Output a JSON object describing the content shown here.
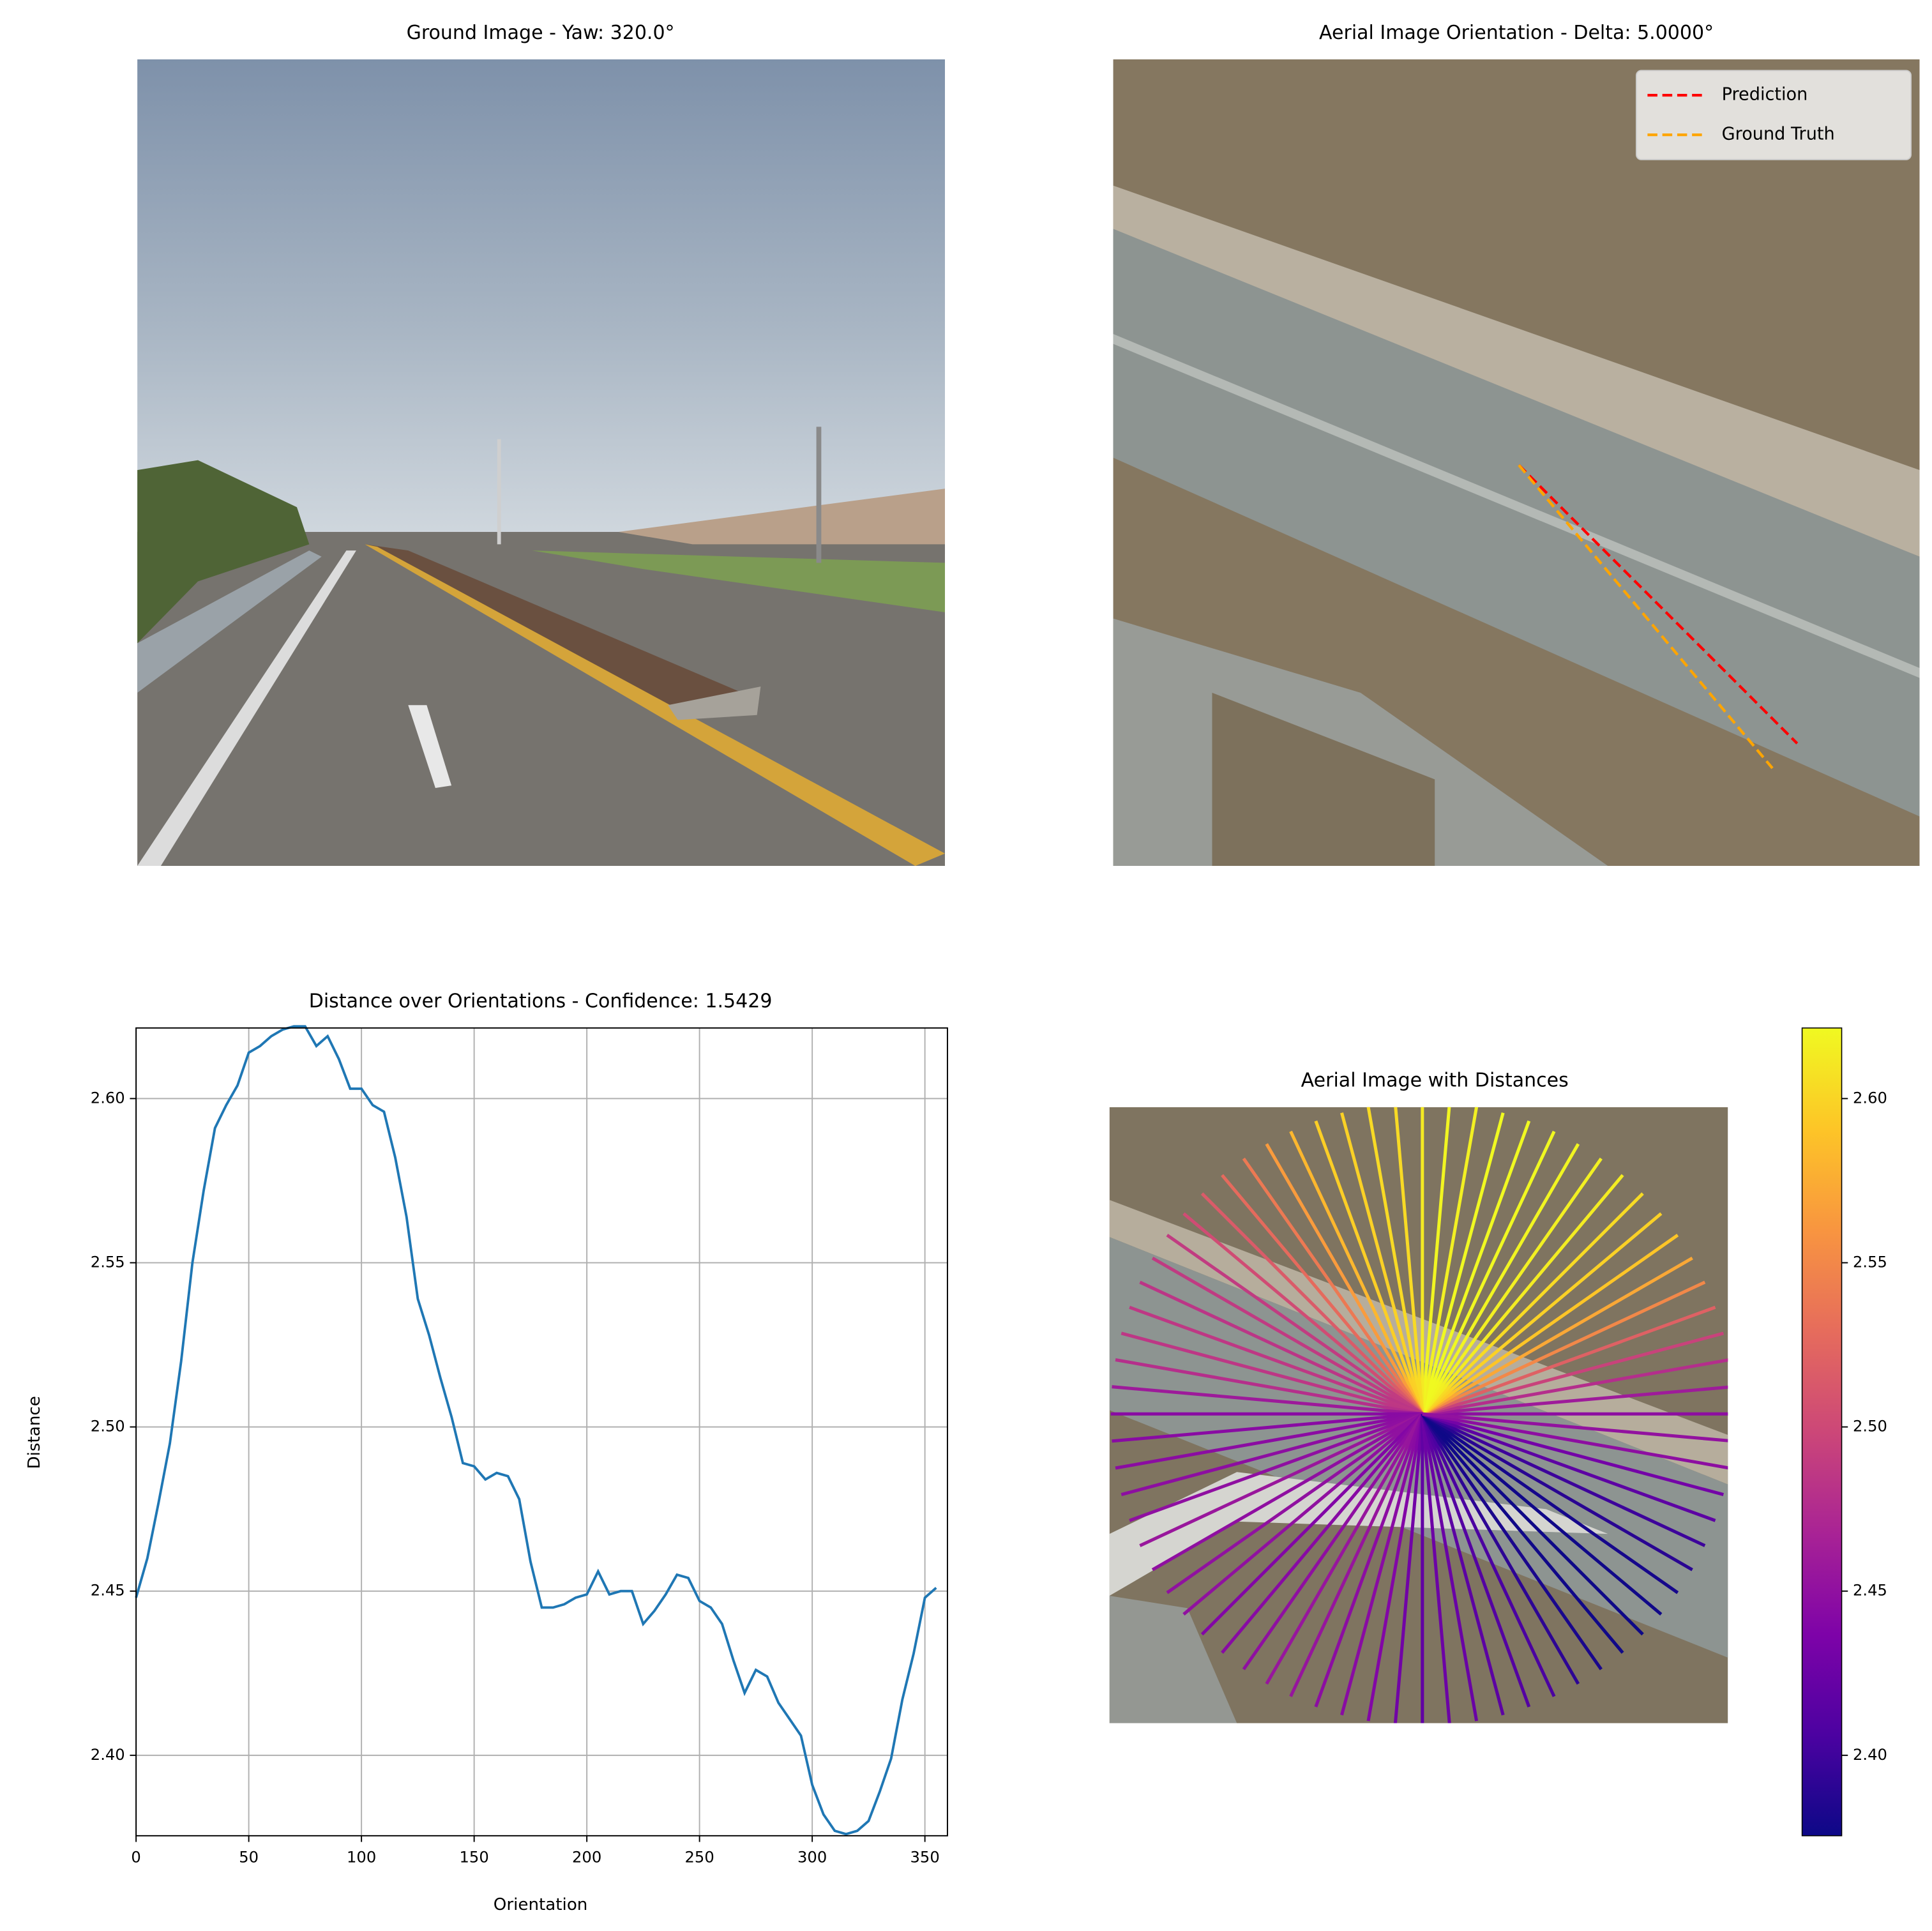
{
  "chart_data": [
    {
      "type": "image",
      "title": "Ground Image - Yaw: 320.0°"
    },
    {
      "type": "image",
      "title": "Aerial Image Orientation - Delta: 5.0000°",
      "legend": "upper right",
      "series": [
        {
          "name": "Prediction",
          "color": "#ff0000"
        },
        {
          "name": "Ground Truth",
          "color": "#ffa500"
        }
      ]
    },
    {
      "type": "line",
      "title": "Distance over Orientations - Confidence: 1.5429",
      "x_label": "Orientation",
      "y_label": "Distance",
      "color": "#1f77b4",
      "grid": true,
      "x": [
        0,
        5,
        10,
        15,
        20,
        25,
        30,
        35,
        40,
        45,
        50,
        55,
        60,
        65,
        70,
        75,
        80,
        85,
        90,
        95,
        100,
        105,
        110,
        115,
        120,
        125,
        130,
        135,
        140,
        145,
        150,
        155,
        160,
        165,
        170,
        175,
        180,
        185,
        190,
        195,
        200,
        205,
        210,
        215,
        220,
        225,
        230,
        235,
        240,
        245,
        250,
        255,
        260,
        265,
        270,
        275,
        280,
        285,
        290,
        295,
        300,
        305,
        310,
        315,
        320,
        325,
        330,
        335,
        340,
        345,
        350,
        355
      ],
      "values": [
        2.448,
        2.46,
        2.477,
        2.495,
        2.52,
        2.55,
        2.572,
        2.591,
        2.598,
        2.604,
        2.614,
        2.616,
        2.619,
        2.621,
        2.622,
        2.622,
        2.616,
        2.619,
        2.612,
        2.603,
        2.603,
        2.598,
        2.596,
        2.582,
        2.564,
        2.539,
        2.528,
        2.515,
        2.503,
        2.489,
        2.488,
        2.484,
        2.486,
        2.485,
        2.478,
        2.459,
        2.445,
        2.445,
        2.446,
        2.448,
        2.449,
        2.456,
        2.449,
        2.45,
        2.45,
        2.44,
        2.444,
        2.449,
        2.455,
        2.454,
        2.447,
        2.445,
        2.44,
        2.429,
        2.419,
        2.426,
        2.424,
        2.416,
        2.411,
        2.406,
        2.391,
        2.382,
        2.377,
        2.376,
        2.377,
        2.38,
        2.389,
        2.399,
        2.417,
        2.431,
        2.448,
        2.451
      ],
      "xlim": [
        0,
        360
      ],
      "xticks": [
        0,
        50,
        100,
        150,
        200,
        250,
        300,
        350
      ],
      "ylim": [
        2.3755,
        2.6215
      ],
      "yticks": [
        {
          "value": 2.4,
          "label": "2.40"
        },
        {
          "value": 2.45,
          "label": "2.45"
        },
        {
          "value": 2.5,
          "label": "2.50"
        },
        {
          "value": 2.55,
          "label": "2.55"
        },
        {
          "value": 2.6,
          "label": "2.60"
        }
      ]
    },
    {
      "type": "radial",
      "title": "Aerial Image with Distances",
      "colormap": "plasma",
      "ylim": [
        2.3755,
        2.6215
      ],
      "yticks": [
        {
          "value": 2.4,
          "label": "2.40"
        },
        {
          "value": 2.45,
          "label": "2.45"
        },
        {
          "value": 2.5,
          "label": "2.50"
        },
        {
          "value": 2.55,
          "label": "2.55"
        },
        {
          "value": 2.6,
          "label": "2.60"
        }
      ]
    }
  ]
}
